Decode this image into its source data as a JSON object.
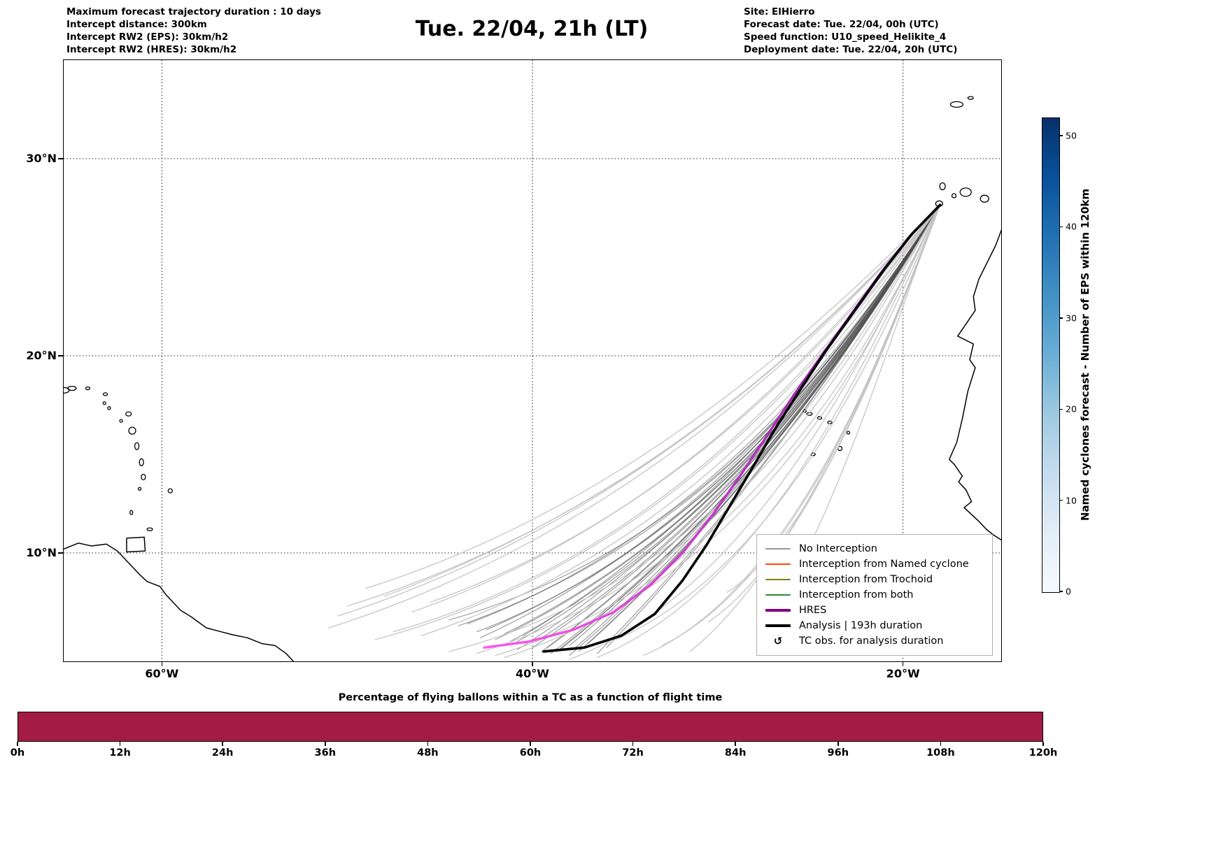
{
  "header": {
    "left_lines": [
      "Maximum forecast trajectory duration : 10 days",
      "Intercept distance: 300km",
      "Intercept RW2 (EPS):  30km/h2",
      "Intercept RW2 (HRES): 30km/h2"
    ],
    "title": "Tue. 22/04, 21h (LT)",
    "right_lines": [
      "Site: ElHierro",
      "Forecast date: Tue. 22/04, 00h (UTC)",
      "Speed function: U10_speed_Helikite_4",
      "Deployment date: Tue. 22/04, 20h (UTC)"
    ]
  },
  "legend": {
    "items": [
      {
        "label": "No Interception",
        "color": "#999999",
        "lw": 1.5
      },
      {
        "label": "Interception from Named cyclone",
        "color": "#ff4500",
        "lw": 1.5
      },
      {
        "label": "Interception from Trochoid",
        "color": "#808000",
        "lw": 1.5
      },
      {
        "label": "Interception from both",
        "color": "#2e8b2e",
        "lw": 1.5
      },
      {
        "label": "HRES",
        "color": "#800080",
        "lw": 4.5
      },
      {
        "label": "Analysis | 193h duration",
        "color": "#000000",
        "lw": 4.5
      },
      {
        "label": "TC obs. for analysis duration",
        "icon": "↺"
      }
    ]
  },
  "chart_data": {
    "type": "line",
    "map": {
      "extent": {
        "lon_min": -65.3,
        "lon_max": -14.7,
        "lat_min": 4.5,
        "lat_max": 35.0
      },
      "grid_lons": [
        -60,
        -40,
        -20
      ],
      "lon_labels": [
        "60°W",
        "40°W",
        "20°W"
      ],
      "grid_lats": [
        30,
        20,
        10
      ],
      "lat_labels": [
        "30°N",
        "20°N",
        "10°N"
      ]
    },
    "start_point": [
      -18.0,
      27.65
    ],
    "analysis": {
      "name": "Analysis | 193h duration",
      "color": "#000000",
      "width": 3.6,
      "points": [
        [
          -18.0,
          27.65
        ],
        [
          -19.5,
          26.2
        ],
        [
          -21.0,
          24.4
        ],
        [
          -22.6,
          22.3
        ],
        [
          -24.2,
          20.2
        ],
        [
          -25.6,
          18.2
        ],
        [
          -26.9,
          16.3
        ],
        [
          -28.2,
          14.2
        ],
        [
          -29.4,
          12.3
        ],
        [
          -30.6,
          10.4
        ],
        [
          -31.9,
          8.6
        ],
        [
          -33.4,
          6.9
        ],
        [
          -35.2,
          5.8
        ],
        [
          -37.2,
          5.2
        ],
        [
          -39.4,
          5.0
        ]
      ]
    },
    "hres": {
      "name": "HRES",
      "color_top": "#6a0f8e",
      "color_bottom": "#ff55ee",
      "width": 3.4,
      "points": [
        [
          -18.0,
          27.65
        ],
        [
          -19.6,
          26.1
        ],
        [
          -21.2,
          24.2
        ],
        [
          -22.8,
          22.1
        ],
        [
          -24.4,
          20.0
        ],
        [
          -25.9,
          18.0
        ],
        [
          -27.3,
          16.0
        ],
        [
          -28.8,
          13.9
        ],
        [
          -30.3,
          11.9
        ],
        [
          -31.9,
          10.0
        ],
        [
          -33.6,
          8.4
        ],
        [
          -35.6,
          7.0
        ],
        [
          -37.8,
          6.1
        ],
        [
          -40.2,
          5.5
        ],
        [
          -42.6,
          5.2
        ]
      ]
    },
    "ensemble": {
      "styles": {
        "dark": {
          "color": "#4d4d4d",
          "opacity": 0.55,
          "width": 1.2
        },
        "light": {
          "color": "#c3c3c3",
          "opacity": 0.9,
          "width": 1.4
        }
      },
      "members": [
        [
          -22.0,
          21.5,
          -28.5,
          12.5,
          -39.5,
          5.0,
          0
        ],
        [
          -22.3,
          21.0,
          -29.0,
          12.0,
          -40.0,
          5.2,
          0
        ],
        [
          -21.8,
          21.8,
          -28.0,
          13.0,
          -38.5,
          5.1,
          0
        ],
        [
          -22.6,
          20.6,
          -29.5,
          11.5,
          -41.0,
          5.4,
          0
        ],
        [
          -22.0,
          21.2,
          -28.8,
          12.2,
          -39.0,
          4.9,
          0
        ],
        [
          -23.0,
          20.2,
          -30.0,
          11.0,
          -42.0,
          5.6,
          0
        ],
        [
          -21.5,
          22.0,
          -27.5,
          13.5,
          -38.0,
          5.3,
          0
        ],
        [
          -22.8,
          20.8,
          -29.8,
          11.8,
          -40.5,
          5.8,
          0
        ],
        [
          -22.1,
          21.4,
          -28.2,
          12.8,
          -37.5,
          5.0,
          0
        ],
        [
          -23.2,
          20.0,
          -30.5,
          10.5,
          -43.0,
          6.0,
          0
        ],
        [
          -21.7,
          21.9,
          -27.8,
          13.2,
          -36.5,
          4.9,
          0
        ],
        [
          -22.4,
          21.1,
          -29.2,
          11.6,
          -41.5,
          5.9,
          0
        ],
        [
          -22.9,
          20.5,
          -30.2,
          10.8,
          -44.0,
          6.3,
          0
        ],
        [
          -21.9,
          21.6,
          -28.4,
          12.4,
          -38.0,
          4.8,
          0
        ],
        [
          -22.2,
          21.3,
          -28.9,
          12.1,
          -39.8,
          5.5,
          0
        ],
        [
          -23.4,
          19.8,
          -31.0,
          10.2,
          -44.5,
          6.6,
          0
        ],
        [
          -21.6,
          22.2,
          -27.2,
          13.8,
          -36.0,
          5.2,
          0
        ],
        [
          -22.5,
          20.9,
          -29.4,
          11.9,
          -40.8,
          5.1,
          0
        ],
        [
          -22.7,
          20.7,
          -29.6,
          11.3,
          -42.5,
          6.1,
          0
        ],
        [
          -21.9,
          21.7,
          -28.1,
          12.9,
          -37.0,
          5.4,
          0
        ],
        [
          -23.1,
          20.3,
          -30.8,
          10.9,
          -43.5,
          6.4,
          0
        ],
        [
          -22.3,
          21.2,
          -28.7,
          12.3,
          -39.2,
          5.2,
          0
        ],
        [
          -22.0,
          21.5,
          -28.3,
          12.6,
          -38.7,
          5.0,
          0
        ],
        [
          -23.3,
          20.1,
          -30.3,
          11.1,
          -42.8,
          5.7,
          0
        ],
        [
          -21.8,
          21.8,
          -27.9,
          13.1,
          -37.8,
          5.1,
          0
        ],
        [
          -22.6,
          20.8,
          -29.1,
          11.7,
          -41.2,
          5.5,
          0
        ],
        [
          -24.0,
          21.5,
          -34.0,
          12.0,
          -50.0,
          7.3,
          1
        ],
        [
          -24.5,
          21.0,
          -35.0,
          11.5,
          -50.5,
          6.8,
          1
        ],
        [
          -23.5,
          22.0,
          -33.0,
          13.0,
          -48.0,
          7.8,
          1
        ],
        [
          -24.8,
          20.5,
          -35.5,
          10.8,
          -51.0,
          6.2,
          1
        ],
        [
          -23.0,
          21.0,
          -31.0,
          10.5,
          -46.0,
          5.8,
          1
        ],
        [
          -23.8,
          20.6,
          -32.5,
          10.0,
          -47.5,
          6.0,
          1
        ],
        [
          -22.5,
          20.0,
          -29.0,
          9.0,
          -43.0,
          4.9,
          1
        ],
        [
          -23.0,
          19.5,
          -30.0,
          8.5,
          -44.5,
          5.0,
          1
        ],
        [
          -22.0,
          19.8,
          -28.0,
          8.8,
          -41.5,
          4.7,
          1
        ],
        [
          -24.0,
          20.0,
          -33.0,
          9.5,
          -48.5,
          5.6,
          1
        ],
        [
          -22.8,
          18.5,
          -28.5,
          8.0,
          -38.0,
          4.6,
          1
        ],
        [
          -22.2,
          19.2,
          -27.5,
          8.2,
          -36.5,
          4.7,
          1
        ],
        [
          -21.5,
          18.8,
          -26.5,
          7.8,
          -34.0,
          4.8,
          1
        ],
        [
          -21.2,
          19.5,
          -26.0,
          8.5,
          -33.0,
          5.3,
          1
        ],
        [
          -24.2,
          21.8,
          -34.5,
          12.5,
          -49.0,
          8.2,
          1
        ],
        [
          -23.6,
          21.4,
          -32.0,
          11.8,
          -46.5,
          7.0,
          1
        ],
        [
          -21.0,
          20.5,
          -25.5,
          9.5,
          -31.5,
          5.0,
          1
        ],
        [
          -22.4,
          19.0,
          -29.5,
          8.3,
          -42.0,
          4.8,
          1
        ],
        [
          -23.2,
          21.6,
          -31.5,
          12.2,
          -45.5,
          7.5,
          1
        ],
        [
          -20.8,
          21.0,
          -25.0,
          10.0,
          -30.5,
          6.5,
          1
        ],
        [
          -20.5,
          21.5,
          -24.5,
          11.0,
          -29.5,
          8.0,
          1
        ],
        [
          -21.3,
          20.2,
          -26.8,
          9.2,
          -35.5,
          5.6,
          1
        ],
        [
          -20.2,
          22.5,
          -23.0,
          13.0,
          -27.5,
          6.0,
          1
        ]
      ]
    },
    "colorbar": {
      "label": "Named cyclones forecast - Number of EPS within 120km",
      "ticks": [
        0,
        10,
        20,
        30,
        40,
        50
      ],
      "vmin": 0,
      "vmax": 52,
      "colors": [
        "#f7fbff",
        "#e3eef8",
        "#c6dcef",
        "#9ecae1",
        "#6baed6",
        "#4292c6",
        "#2171b5",
        "#08519c",
        "#08306b"
      ]
    },
    "percent_bar": {
      "title": "Percentage of flying ballons within a TC as a function of flight time",
      "x_ticks": [
        "0h",
        "12h",
        "24h",
        "36h",
        "48h",
        "60h",
        "72h",
        "84h",
        "96h",
        "108h",
        "120h"
      ],
      "color": "#a21c45",
      "full_width": true
    }
  },
  "coast": {
    "lines": [
      {
        "name": "africa-west-coast",
        "points": [
          [
            -14.6,
            26.6
          ],
          [
            -15.0,
            25.6
          ],
          [
            -15.9,
            23.9
          ],
          [
            -16.2,
            23.0
          ],
          [
            -16.1,
            22.3
          ],
          [
            -16.9,
            21.2
          ],
          [
            -17.05,
            21.0
          ],
          [
            -16.2,
            20.6
          ],
          [
            -16.4,
            19.8
          ],
          [
            -16.1,
            19.4
          ],
          [
            -16.5,
            18.2
          ],
          [
            -16.8,
            16.8
          ],
          [
            -17.1,
            15.6
          ],
          [
            -17.5,
            14.75
          ],
          [
            -17.2,
            14.45
          ],
          [
            -16.8,
            13.9
          ],
          [
            -17.0,
            13.6
          ],
          [
            -16.6,
            13.2
          ],
          [
            -16.3,
            12.6
          ],
          [
            -16.7,
            12.3
          ],
          [
            -15.9,
            11.6
          ],
          [
            -15.5,
            11.2
          ],
          [
            -15.1,
            10.9
          ],
          [
            -14.6,
            10.6
          ]
        ]
      },
      {
        "name": "south-america-coast",
        "points": [
          [
            -65.3,
            10.2
          ],
          [
            -64.5,
            10.5
          ],
          [
            -63.8,
            10.35
          ],
          [
            -63.0,
            10.45
          ],
          [
            -62.4,
            10.1
          ],
          [
            -62.0,
            9.7
          ],
          [
            -61.9,
            9.6
          ],
          [
            -61.2,
            8.9
          ],
          [
            -60.8,
            8.55
          ],
          [
            -60.1,
            8.3
          ],
          [
            -59.8,
            7.9
          ],
          [
            -59.0,
            7.1
          ],
          [
            -58.4,
            6.75
          ],
          [
            -57.6,
            6.2
          ],
          [
            -57.0,
            6.05
          ],
          [
            -56.2,
            5.85
          ],
          [
            -55.4,
            5.7
          ],
          [
            -54.6,
            5.4
          ],
          [
            -53.9,
            5.3
          ],
          [
            -53.3,
            4.9
          ],
          [
            -52.9,
            4.5
          ]
        ]
      },
      {
        "name": "trinidad",
        "points": [
          [
            -61.9,
            10.75
          ],
          [
            -60.95,
            10.8
          ],
          [
            -60.9,
            10.1
          ],
          [
            -61.9,
            10.05
          ],
          [
            -61.9,
            10.75
          ]
        ]
      }
    ],
    "islands": [
      [
        -17.1,
        32.75,
        9,
        4
      ],
      [
        -16.35,
        33.08,
        4,
        2
      ],
      [
        -18.05,
        27.72,
        5,
        4
      ],
      [
        -17.87,
        28.6,
        4,
        5
      ],
      [
        -17.25,
        28.12,
        3,
        3
      ],
      [
        -16.62,
        28.3,
        8,
        6
      ],
      [
        -15.6,
        27.97,
        6,
        5
      ],
      [
        -14.45,
        28.35,
        6,
        7
      ],
      [
        -14.0,
        28.95,
        5,
        6
      ],
      [
        -25.05,
        17.05,
        4,
        2
      ],
      [
        -24.5,
        16.85,
        3,
        2
      ],
      [
        -23.95,
        16.62,
        3,
        2
      ],
      [
        -23.4,
        15.3,
        3,
        3
      ],
      [
        -24.85,
        15.0,
        3,
        2
      ],
      [
        -25.3,
        17.2,
        2,
        2
      ],
      [
        -22.95,
        16.1,
        2,
        2
      ],
      [
        -59.55,
        13.15,
        3,
        3
      ],
      [
        -61.0,
        13.85,
        3,
        4
      ],
      [
        -61.1,
        14.6,
        3,
        5
      ],
      [
        -61.35,
        15.42,
        3,
        5
      ],
      [
        -61.6,
        16.2,
        5,
        5
      ],
      [
        -61.8,
        17.05,
        4,
        3
      ],
      [
        -62.2,
        16.7,
        2,
        2
      ],
      [
        -62.85,
        17.35,
        2,
        2
      ],
      [
        -63.1,
        17.6,
        2,
        2
      ],
      [
        -63.05,
        18.05,
        3,
        2
      ],
      [
        -64.0,
        18.35,
        3,
        2
      ],
      [
        -64.85,
        18.35,
        6,
        3
      ],
      [
        -65.3,
        18.25,
        8,
        4
      ],
      [
        -61.65,
        12.05,
        2,
        3
      ],
      [
        -61.2,
        13.25,
        2,
        2
      ],
      [
        -60.65,
        11.2,
        4,
        2
      ]
    ]
  }
}
